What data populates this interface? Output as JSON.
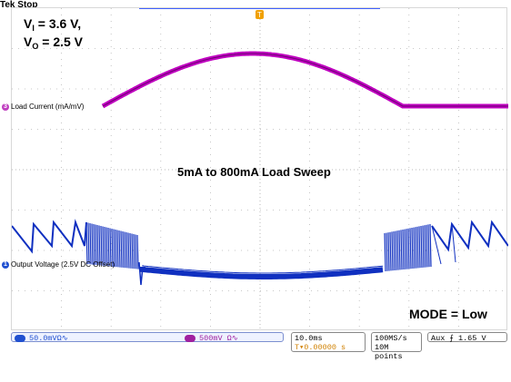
{
  "header": {
    "status": "Tek Stop"
  },
  "annotations": {
    "vi_prefix": "V",
    "vi_sub": "I",
    "vi_value": " = 3.6 V,",
    "vo_prefix": "V",
    "vo_sub": "O",
    "vo_value": " = 2.5 V",
    "sweep_title": "5mA to 800mA Load Sweep",
    "mode": "MODE = Low"
  },
  "channels": {
    "ch3": {
      "marker": "3",
      "label": "Load Current (mA/mV)",
      "color": "#c040c0"
    },
    "ch1": {
      "marker": "1",
      "label": "Output Voltage (2.5V DC Offset)",
      "color": "#1a3fd0"
    }
  },
  "trigger_marker": "T",
  "status_bar": {
    "ch1_icon": "1",
    "ch1_scale": "50.0mVΩ∿",
    "ch3_icon": "3",
    "ch3_scale": "500mV Ω∿",
    "timebase": "10.0ms",
    "trigger_position": "▾0.00000 s",
    "sample_rate": "100MS/s",
    "record_length": "10M points",
    "trigger_source": "Aux",
    "trigger_slope": "⨍",
    "trigger_level": "1.65 V"
  },
  "colors": {
    "grid": "#b8b8b8",
    "load_current_trace": "#c000c0",
    "output_voltage_trace": "#1030c0",
    "trigger_marker": "#f0a000"
  }
}
